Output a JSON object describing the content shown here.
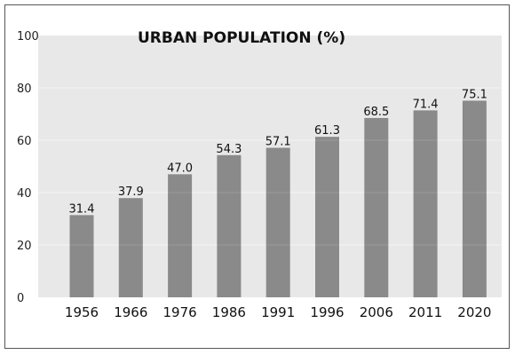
{
  "chart_data": {
    "type": "bar",
    "title": "URBAN POPULATION (%)",
    "categories": [
      "1956",
      "1966",
      "1976",
      "1986",
      "1991",
      "1996",
      "2006",
      "2011",
      "2020"
    ],
    "values": [
      31.4,
      37.9,
      47.0,
      54.3,
      57.1,
      61.3,
      68.5,
      71.4,
      75.1
    ],
    "value_labels": [
      "31.4",
      "37.9",
      "47.0",
      "54.3",
      "57.1",
      "61.3",
      "68.5",
      "71.4",
      "75.1"
    ],
    "xlabel": "",
    "ylabel": "",
    "ylim": [
      0,
      100
    ],
    "yticks": [
      "0",
      "20",
      "40",
      "60",
      "80",
      "100"
    ],
    "grid": true,
    "colors": {
      "plot_background": "#e8e8e8",
      "bar": "#8a8a8a",
      "grid": "#f4f4f4"
    }
  }
}
